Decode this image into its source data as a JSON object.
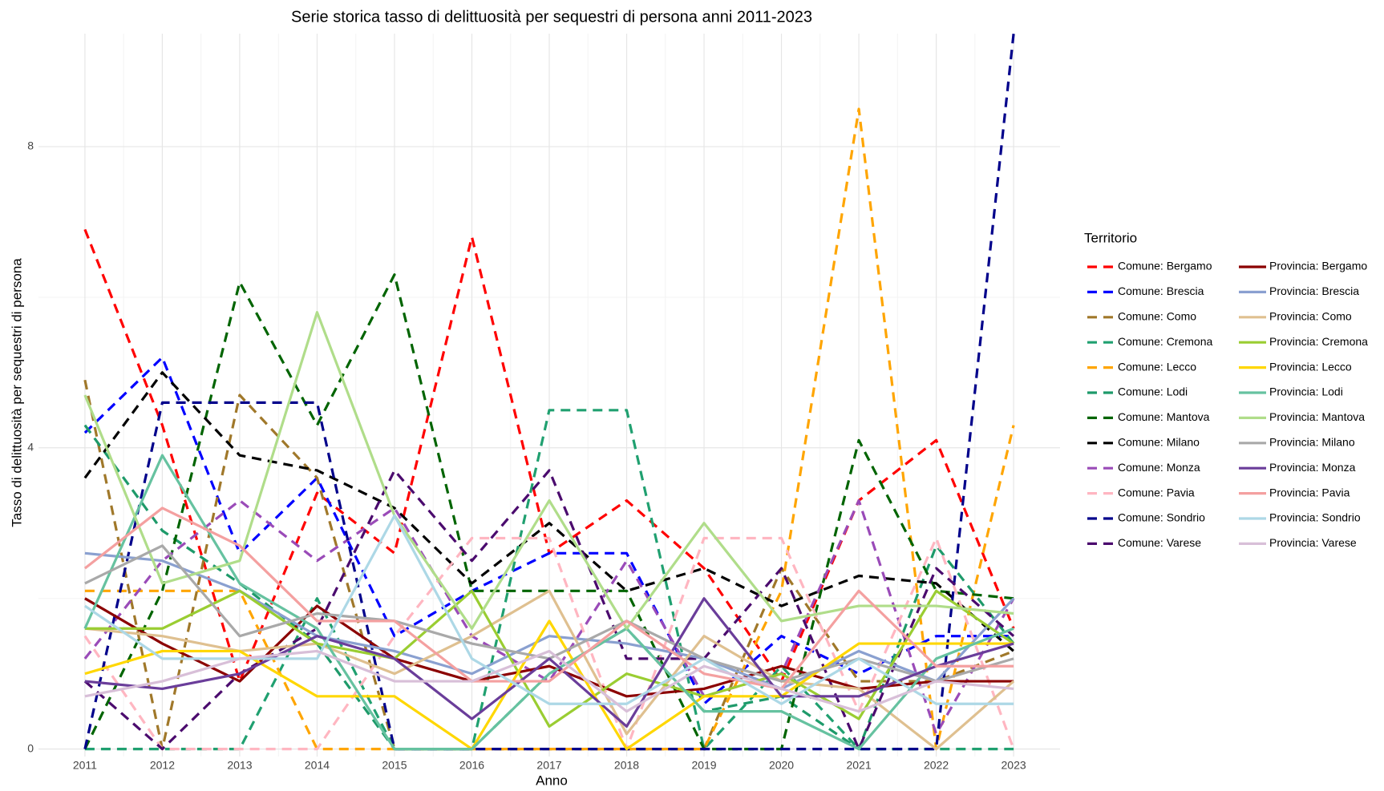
{
  "chart_data": {
    "type": "line",
    "title": "Serie storica tasso di delittuosità per sequestri di persona anni 2011-2023",
    "x_label": "Anno",
    "y_label": "Tasso di delittuosità per sequestri di persona",
    "legend_title": "Territorio",
    "legend": "right",
    "grid": true,
    "x": [
      2011,
      2012,
      2013,
      2014,
      2015,
      2016,
      2017,
      2018,
      2019,
      2020,
      2021,
      2022,
      2023
    ],
    "xlim": [
      2010.4,
      2023.6
    ],
    "xticks": [
      2011,
      2012,
      2013,
      2014,
      2015,
      2016,
      2017,
      2018,
      2019,
      2020,
      2021,
      2022,
      2023
    ],
    "ylim": [
      -0.1,
      9.5
    ],
    "yticks": [
      0,
      4,
      8
    ],
    "yminor": [
      2,
      6
    ],
    "series": [
      {
        "name": "Comune: Bergamo",
        "color": "#ff0000",
        "linetype": "dashed",
        "values": [
          6.9,
          4.3,
          0.9,
          3.4,
          2.6,
          6.8,
          2.6,
          3.3,
          2.4,
          0.9,
          3.3,
          4.1,
          1.6
        ]
      },
      {
        "name": "Comune: Brescia",
        "color": "#0000ff",
        "linetype": "dashed",
        "values": [
          4.2,
          5.2,
          2.6,
          3.6,
          1.5,
          2.1,
          2.6,
          2.6,
          0.6,
          1.5,
          1.0,
          1.5,
          1.5
        ]
      },
      {
        "name": "Comune: Como",
        "color": "#a0782a",
        "linetype": "dashed",
        "values": [
          4.9,
          0,
          4.7,
          3.6,
          0,
          0,
          0,
          0,
          0,
          2.4,
          0.9,
          0.9,
          1.3
        ]
      },
      {
        "name": "Comune: Cremona",
        "color": "#20a070",
        "linetype": "dashed",
        "values": [
          0,
          0,
          0,
          2.0,
          0,
          0,
          4.5,
          4.5,
          0,
          1.1,
          0,
          0,
          0
        ]
      },
      {
        "name": "Comune: Lecco",
        "color": "#ffa500",
        "linetype": "dashed",
        "values": [
          2.1,
          2.1,
          2.1,
          0,
          0,
          0,
          0,
          0,
          0,
          2.1,
          8.5,
          0,
          4.3
        ]
      },
      {
        "name": "Comune: Lodi",
        "color": "#1e9a6a",
        "linetype": "dashed",
        "values": [
          4.3,
          2.9,
          2.2,
          1.4,
          0,
          0,
          1.0,
          1.6,
          0.5,
          0.7,
          0,
          2.7,
          1.4
        ]
      },
      {
        "name": "Comune: Mantova",
        "color": "#006400",
        "linetype": "dashed",
        "values": [
          0,
          2.1,
          6.2,
          4.3,
          6.3,
          2.1,
          2.1,
          2.1,
          0,
          0,
          4.1,
          2.1,
          2.0
        ]
      },
      {
        "name": "Comune: Milano",
        "color": "#000000",
        "linetype": "dashed",
        "values": [
          3.6,
          5.0,
          3.9,
          3.7,
          3.2,
          2.2,
          3.0,
          2.1,
          2.4,
          1.9,
          2.3,
          2.2,
          1.3
        ]
      },
      {
        "name": "Comune: Monza",
        "color": "#9a4bb8",
        "linetype": "dashed",
        "values": [
          1.2,
          2.5,
          3.3,
          2.5,
          3.2,
          1.5,
          0.9,
          2.5,
          0.7,
          1.0,
          3.3,
          0.2,
          2.0
        ]
      },
      {
        "name": "Comune: Pavia",
        "color": "#ffb6c1",
        "linetype": "dashed",
        "values": [
          1.5,
          0,
          0,
          0,
          1.5,
          2.8,
          2.8,
          0,
          2.8,
          2.8,
          0.5,
          2.8,
          0
        ]
      },
      {
        "name": "Comune: Sondrio",
        "color": "#00008b",
        "linetype": "dashed",
        "values": [
          0,
          4.6,
          4.6,
          4.6,
          0,
          0,
          0,
          0,
          0,
          0,
          0,
          0,
          9.5
        ]
      },
      {
        "name": "Comune: Varese",
        "color": "#4b0b6e",
        "linetype": "dashed",
        "values": [
          0.9,
          0,
          1.0,
          1.6,
          3.7,
          2.5,
          3.7,
          1.2,
          1.2,
          2.4,
          0,
          2.4,
          1.5
        ]
      },
      {
        "name": "Provincia: Bergamo",
        "color": "#8b0000",
        "linetype": "solid",
        "values": [
          2.0,
          1.4,
          0.9,
          1.9,
          1.2,
          0.9,
          1.1,
          0.7,
          0.8,
          1.1,
          0.8,
          0.9,
          0.9
        ]
      },
      {
        "name": "Provincia: Brescia",
        "color": "#8aa0d0",
        "linetype": "solid",
        "values": [
          2.6,
          2.5,
          2.1,
          1.5,
          1.3,
          1.0,
          1.5,
          1.4,
          1.2,
          0.8,
          1.3,
          0.9,
          2.0
        ]
      },
      {
        "name": "Provincia: Como",
        "color": "#dfc090",
        "linetype": "solid",
        "values": [
          1.6,
          1.5,
          1.3,
          1.4,
          1.0,
          1.5,
          2.1,
          0.2,
          1.5,
          0.9,
          0.8,
          0,
          0.9
        ]
      },
      {
        "name": "Provincia: Cremona",
        "color": "#9acd32",
        "linetype": "solid",
        "values": [
          1.6,
          1.6,
          2.1,
          1.4,
          1.2,
          2.1,
          0.3,
          1.0,
          0.7,
          1.0,
          0.4,
          2.1,
          1.4
        ]
      },
      {
        "name": "Provincia: Lecco",
        "color": "#ffd700",
        "linetype": "solid",
        "values": [
          1.0,
          1.3,
          1.3,
          0.7,
          0.7,
          0,
          1.7,
          0,
          0.7,
          0.7,
          1.4,
          1.4,
          1.4
        ]
      },
      {
        "name": "Provincia: Lodi",
        "color": "#66c2a0",
        "linetype": "solid",
        "values": [
          1.6,
          3.9,
          2.2,
          1.6,
          0,
          0,
          1.0,
          1.6,
          0.5,
          0.5,
          0,
          1.2,
          1.6
        ]
      },
      {
        "name": "Provincia: Mantova",
        "color": "#b0dd8a",
        "linetype": "solid",
        "values": [
          4.7,
          2.2,
          2.5,
          5.8,
          3.1,
          1.6,
          3.3,
          1.6,
          3.0,
          1.7,
          1.9,
          1.9,
          1.8
        ]
      },
      {
        "name": "Provincia: Milano",
        "color": "#a9a9a9",
        "linetype": "solid",
        "values": [
          2.2,
          2.7,
          1.5,
          1.8,
          1.7,
          1.4,
          1.2,
          1.7,
          1.2,
          0.9,
          1.2,
          0.9,
          1.2
        ]
      },
      {
        "name": "Provincia: Monza",
        "color": "#6a3d9a",
        "linetype": "solid",
        "values": [
          0.9,
          0.8,
          1.0,
          1.5,
          1.2,
          0.4,
          1.2,
          0.3,
          2.0,
          0.7,
          0.7,
          1.1,
          1.4
        ]
      },
      {
        "name": "Provincia: Pavia",
        "color": "#f4a0a0",
        "linetype": "solid",
        "values": [
          2.4,
          3.2,
          2.7,
          1.7,
          1.7,
          0.9,
          0.9,
          1.7,
          1.0,
          0.8,
          2.1,
          1.1,
          1.1
        ]
      },
      {
        "name": "Provincia: Sondrio",
        "color": "#add8e6",
        "linetype": "solid",
        "values": [
          1.9,
          1.2,
          1.2,
          1.2,
          3.1,
          1.2,
          0.6,
          0.6,
          1.2,
          0.6,
          1.2,
          0.6,
          0.6
        ]
      },
      {
        "name": "Provincia: Varese",
        "color": "#d8bfd8",
        "linetype": "solid",
        "values": [
          0.7,
          0.9,
          1.2,
          1.3,
          0.9,
          0.9,
          1.3,
          0.5,
          1.1,
          0.8,
          0.5,
          0.9,
          0.8
        ]
      }
    ]
  }
}
